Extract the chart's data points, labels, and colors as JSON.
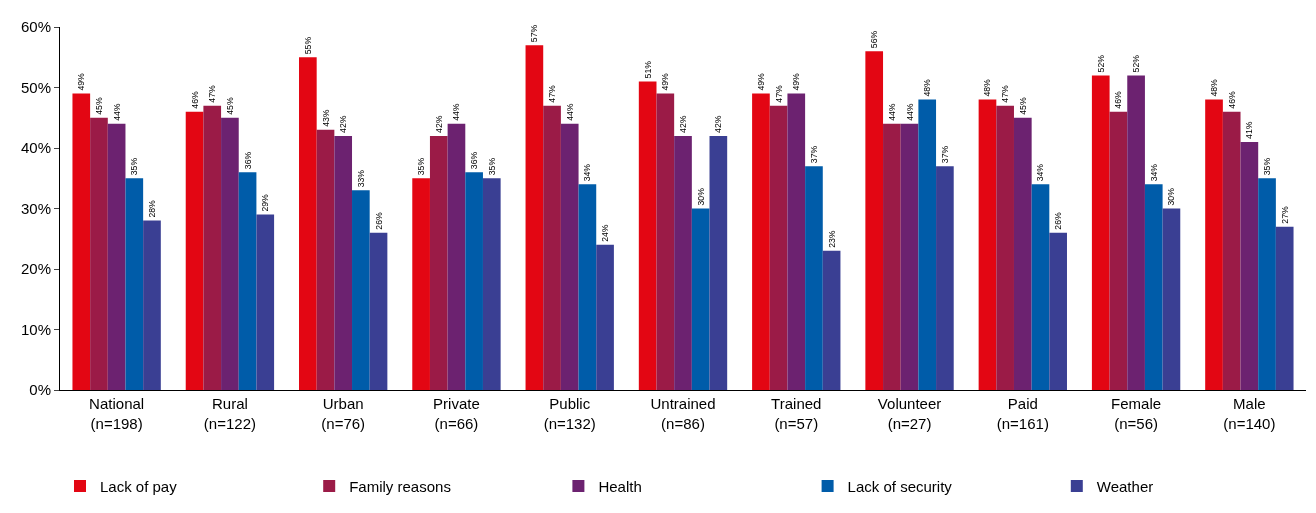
{
  "chart_data": {
    "type": "bar",
    "categories": [
      "National\n(n=198)",
      "Rural\n(n=122)",
      "Urban\n(n=76)",
      "Private\n(n=66)",
      "Public\n(n=132)",
      "Untrained\n(n=86)",
      "Trained\n(n=57)",
      "Volunteer\n(n=27)",
      "Paid\n(n=161)",
      "Female\n(n=56)",
      "Male\n(n=140)"
    ],
    "series": [
      {
        "name": "Lack of pay",
        "color": "#e30613",
        "values": [
          49,
          46,
          55,
          35,
          57,
          51,
          49,
          56,
          48,
          52,
          48
        ],
        "value_labels": [
          "49%",
          "46%",
          "55%",
          "35%",
          "57%",
          "51%",
          "49%",
          "56%",
          "48%",
          "52%",
          "48%"
        ]
      },
      {
        "name": "Family reasons",
        "color": "#9b1b47",
        "values": [
          45,
          47,
          43,
          42,
          47,
          49,
          47,
          44,
          47,
          46,
          46
        ],
        "value_labels": [
          "45%",
          "47%",
          "43%",
          "42%",
          "47%",
          "49%",
          "47%",
          "44%",
          "47%",
          "46%",
          "46%"
        ]
      },
      {
        "name": "Health",
        "color": "#6c2270",
        "values": [
          44,
          45,
          42,
          44,
          44,
          42,
          49,
          44,
          45,
          52,
          41
        ],
        "value_labels": [
          "44%",
          "45%",
          "42%",
          "44%",
          "44%",
          "42%",
          "49%",
          "44%",
          "45%",
          "52%",
          "41%"
        ]
      },
      {
        "name": "Lack of security",
        "color": "#005ca9",
        "values": [
          35,
          36,
          33,
          36,
          34,
          30,
          37,
          48,
          34,
          34,
          35
        ],
        "value_labels": [
          "35%",
          "36%",
          "33%",
          "36%",
          "34%",
          "30%",
          "37%",
          "48%",
          "34%",
          "34%",
          "35%"
        ]
      },
      {
        "name": "Weather",
        "color": "#3a3f93",
        "values": [
          28,
          29,
          26,
          35,
          24,
          42,
          23,
          37,
          26,
          30,
          27
        ],
        "value_labels": [
          "28%",
          "29%",
          "26%",
          "35%",
          "24%",
          "42%",
          "23%",
          "37%",
          "26%",
          "30%",
          "27%"
        ]
      }
    ],
    "ylim": [
      0,
      60
    ],
    "yticks": [
      {
        "value": 0,
        "label": "0%"
      },
      {
        "value": 10,
        "label": "10%"
      },
      {
        "value": 20,
        "label": "20%"
      },
      {
        "value": 30,
        "label": "30%"
      },
      {
        "value": 40,
        "label": "40%"
      },
      {
        "value": 50,
        "label": "50%"
      },
      {
        "value": 60,
        "label": "60%"
      }
    ],
    "grid": false,
    "legend": "bottom"
  }
}
